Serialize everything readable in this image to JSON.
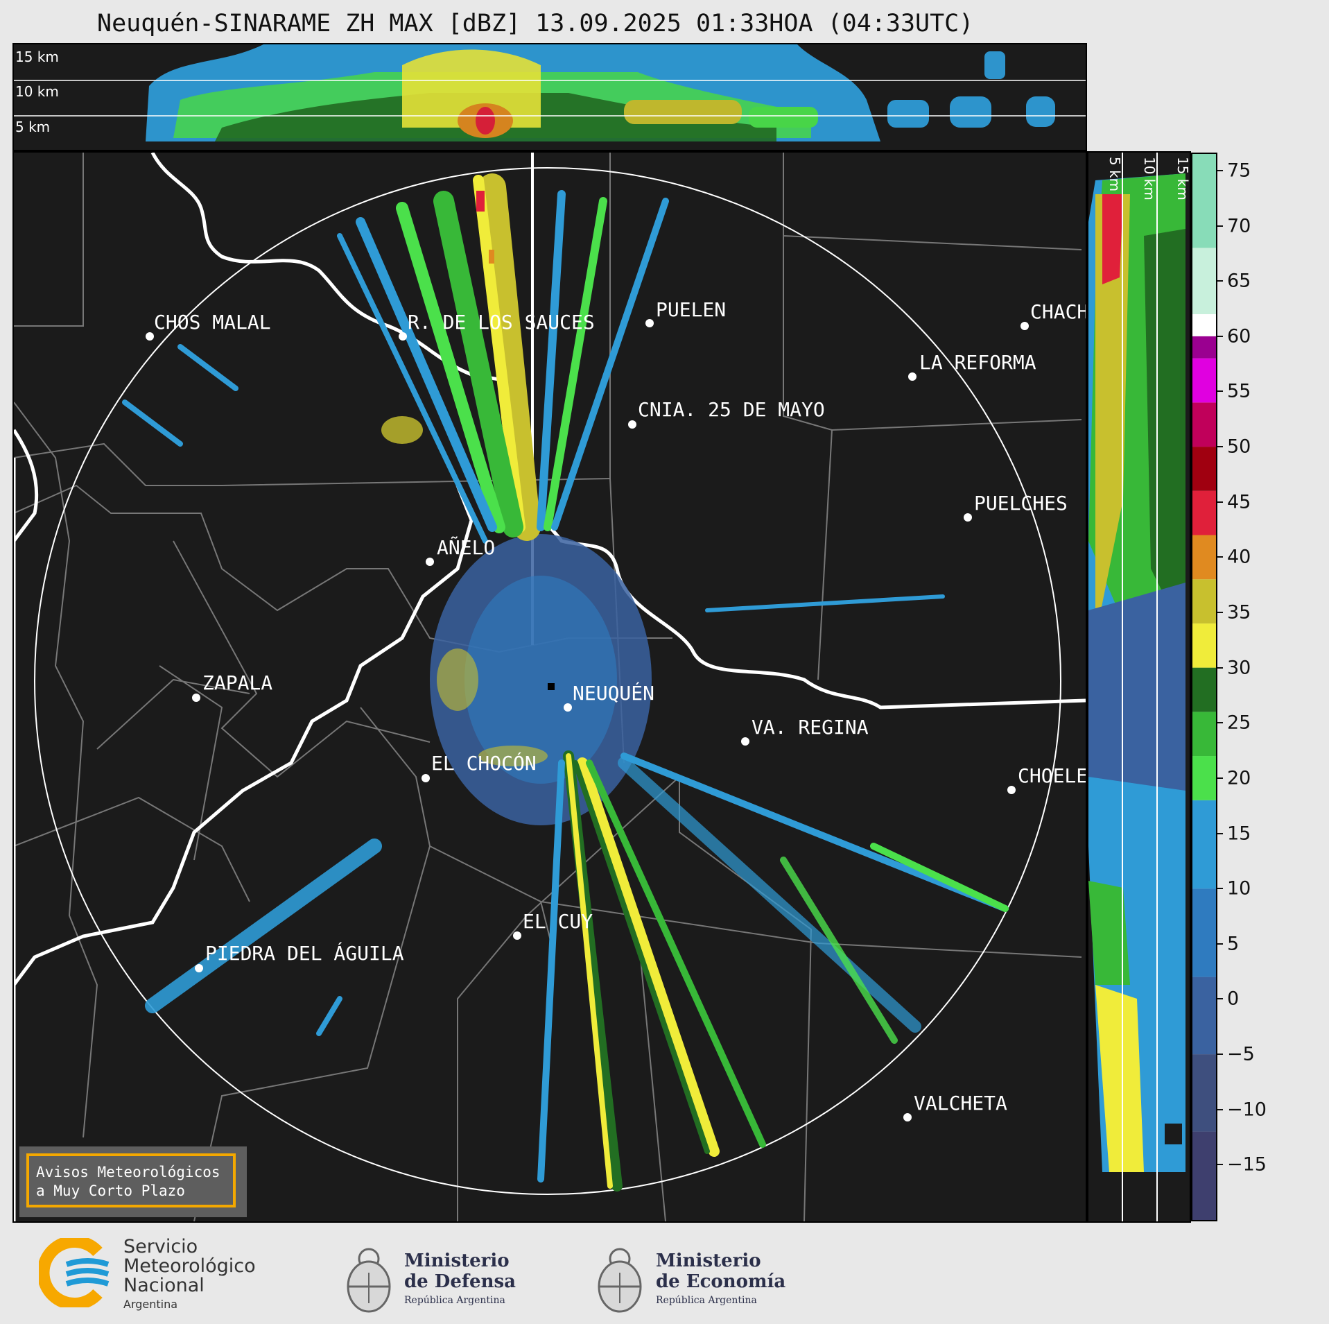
{
  "title": "Neuquén-SINARAME ZH MAX [dBZ] 13.09.2025 01:33HOA (04:33UTC)",
  "top_panel": {
    "levels": [
      "15 km",
      "10 km",
      "5 km"
    ]
  },
  "side_panel": {
    "levels": [
      "5 km",
      "10 km",
      "15 km"
    ]
  },
  "colorbar": {
    "ticks": [
      "75",
      "70",
      "65",
      "60",
      "55",
      "50",
      "45",
      "40",
      "35",
      "30",
      "25",
      "20",
      "15",
      "10",
      "5",
      "0",
      "−5",
      "−10",
      "−15"
    ],
    "tick_values": [
      75,
      70,
      65,
      60,
      55,
      50,
      45,
      40,
      35,
      30,
      25,
      20,
      15,
      10,
      5,
      0,
      -5,
      -10,
      -15
    ],
    "min": -20,
    "max": 76.5,
    "bands": [
      {
        "from": -20,
        "to": -12,
        "color": "#3e3f6e"
      },
      {
        "from": -12,
        "to": -5,
        "color": "#3e4f7e"
      },
      {
        "from": -5,
        "to": 2,
        "color": "#3a62a0"
      },
      {
        "from": 2,
        "to": 10,
        "color": "#2f7bbf"
      },
      {
        "from": 10,
        "to": 18,
        "color": "#2f9bd6"
      },
      {
        "from": 18,
        "to": 22,
        "color": "#4be04b"
      },
      {
        "from": 22,
        "to": 26,
        "color": "#38b838"
      },
      {
        "from": 26,
        "to": 30,
        "color": "#226e22"
      },
      {
        "from": 30,
        "to": 34,
        "color": "#f0ec3a"
      },
      {
        "from": 34,
        "to": 38,
        "color": "#c8c02e"
      },
      {
        "from": 38,
        "to": 42,
        "color": "#e08a20"
      },
      {
        "from": 42,
        "to": 46,
        "color": "#e0203a"
      },
      {
        "from": 46,
        "to": 50,
        "color": "#a00010"
      },
      {
        "from": 50,
        "to": 54,
        "color": "#c0005a"
      },
      {
        "from": 54,
        "to": 58,
        "color": "#e000e0"
      },
      {
        "from": 58,
        "to": 60,
        "color": "#9a0090"
      },
      {
        "from": 60,
        "to": 62,
        "color": "#ffffff"
      },
      {
        "from": 62,
        "to": 68,
        "color": "#c8f0dc"
      },
      {
        "from": 68,
        "to": 76.5,
        "color": "#88dcb8"
      }
    ]
  },
  "cities": [
    {
      "name": "CHOS MALAL"
    },
    {
      "name": "R. DE LOS SAUCES"
    },
    {
      "name": "PUELEN"
    },
    {
      "name": "CHACH"
    },
    {
      "name": "LA REFORMA"
    },
    {
      "name": "CNIA. 25 DE MAYO"
    },
    {
      "name": "PUELCHES"
    },
    {
      "name": "AÑELO"
    },
    {
      "name": "ZAPALA"
    },
    {
      "name": "NEUQUÉN"
    },
    {
      "name": "VA. REGINA"
    },
    {
      "name": "EL CHOCÓN"
    },
    {
      "name": "CHOELE"
    },
    {
      "name": "EL CUY"
    },
    {
      "name": "PIEDRA DEL ÁGUILA"
    },
    {
      "name": "VALCHETA"
    }
  ],
  "alert": {
    "line1": "Avisos Meteorológicos",
    "line2": "a Muy Corto Plazo"
  },
  "footer": {
    "smn": {
      "line1": "Servicio",
      "line2": "Meteorológico",
      "line3": "Nacional",
      "line4": "Argentina"
    },
    "defensa": {
      "line1": "Ministerio",
      "line2": "de Defensa",
      "sub": "República Argentina"
    },
    "economia": {
      "line1": "Ministerio",
      "line2": "de Economía",
      "sub": "República Argentina"
    }
  },
  "colors": {
    "map_bg": "#1b1b1b",
    "smn_blue": "#1f9ad6",
    "smn_yellow": "#f7a800",
    "ministry": "#2b2f4a"
  }
}
